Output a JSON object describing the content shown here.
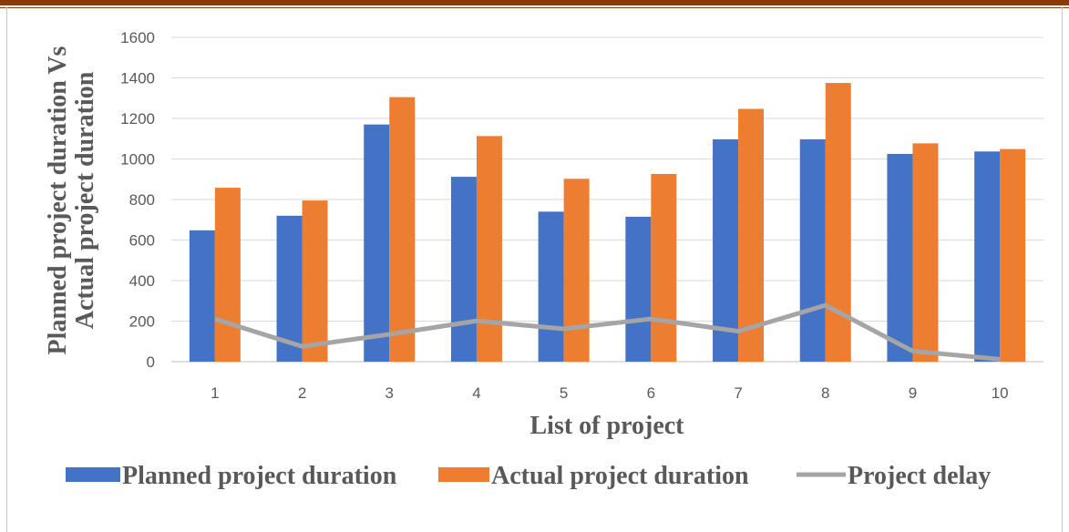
{
  "colors": {
    "planned": "#4472C4",
    "actual": "#ED7D31",
    "delay": "#A5A5A5",
    "grid": "#D9D9D9",
    "axis": "#BFBFBF",
    "rule": "#843C0C"
  },
  "chart_data": {
    "type": "bar",
    "categories": [
      "1",
      "2",
      "3",
      "4",
      "5",
      "6",
      "7",
      "8",
      "9",
      "10"
    ],
    "series": [
      {
        "name": "Planned project duration",
        "type": "bar",
        "values": [
          648,
          720,
          1170,
          912,
          740,
          715,
          1097,
          1097,
          1025,
          1037
        ]
      },
      {
        "name": "Actual project duration",
        "type": "bar",
        "values": [
          858,
          795,
          1305,
          1113,
          902,
          926,
          1247,
          1375,
          1077,
          1049
        ]
      },
      {
        "name": "Project delay",
        "type": "line",
        "values": [
          210,
          75,
          135,
          201,
          162,
          211,
          150,
          278,
          52,
          12
        ]
      }
    ],
    "xlabel": "List of project",
    "ylabel_lines": [
      "Planned project duration Vs",
      "Actual project duration"
    ],
    "ylim": [
      0,
      1600
    ],
    "yticks": [
      "0",
      "200",
      "400",
      "600",
      "800",
      "1000",
      "1200",
      "1400",
      "1600"
    ],
    "grid": true,
    "legend_position": "bottom"
  }
}
